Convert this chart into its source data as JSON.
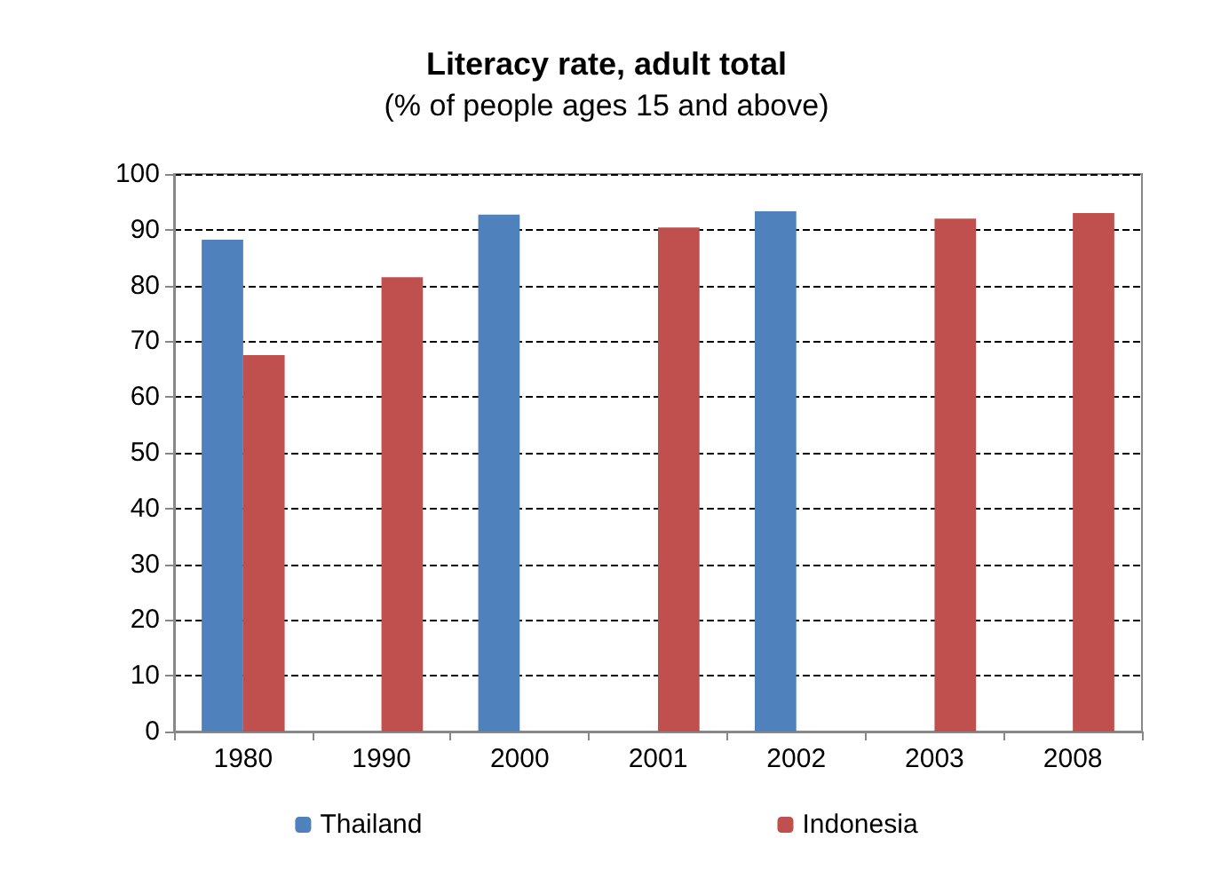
{
  "chart_data": {
    "type": "bar",
    "title": "Literacy rate, adult total",
    "subtitle": "(% of people ages 15 and above)",
    "categories": [
      "1980",
      "1990",
      "2000",
      "2001",
      "2002",
      "2003",
      "2008"
    ],
    "series": [
      {
        "name": "Thailand",
        "color": "#4f81bd",
        "values": [
          88.2,
          null,
          92.7,
          null,
          93.3,
          null,
          null
        ]
      },
      {
        "name": "Indonesia",
        "color": "#c0504d",
        "values": [
          67.5,
          81.5,
          null,
          90.4,
          null,
          92.0,
          93.0
        ]
      }
    ],
    "ylim": [
      0,
      100
    ],
    "yticks": [
      0,
      10,
      20,
      30,
      40,
      50,
      60,
      70,
      80,
      90,
      100
    ],
    "grid": "y",
    "legend": "bottom"
  }
}
